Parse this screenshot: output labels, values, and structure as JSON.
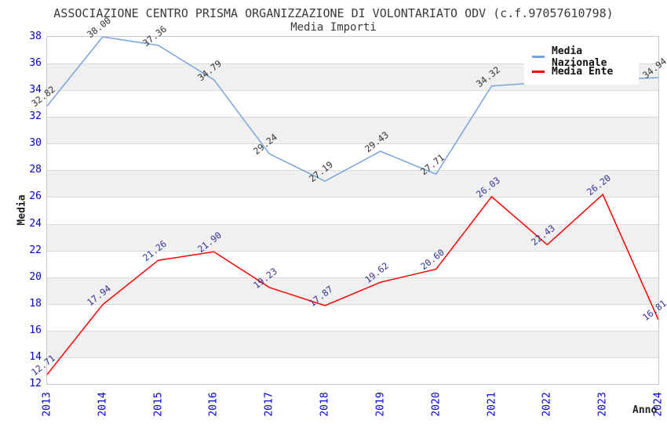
{
  "header": {
    "title": "ASSOCIAZIONE CENTRO PRISMA ORGANIZZAZIONE DI VOLONTARIATO ODV (c.f.97057610798)",
    "subtitle": "Media Importi"
  },
  "chart_data": {
    "type": "line",
    "x": [
      "2013",
      "2014",
      "2015",
      "2016",
      "2017",
      "2018",
      "2019",
      "2020",
      "2021",
      "2022",
      "2023",
      "2024"
    ],
    "xlabel": "Anno",
    "ylabel": "Media",
    "ylim": [
      12,
      38
    ],
    "ytick_step": 2,
    "grid": "horizontal-bands",
    "legend_position": "top-right",
    "tick_color": "#0000cc",
    "band_color": "#f0f0f0",
    "gridline_color": "#dadada",
    "series": [
      {
        "name": "Media Nazionale",
        "color": "#79a4db",
        "label_color": "#333333",
        "values": [
          32.82,
          38.0,
          37.36,
          34.79,
          29.24,
          27.19,
          29.43,
          27.71,
          34.32,
          34.6,
          34.8,
          34.94
        ],
        "labels": [
          "32.82",
          "38.00",
          "37.36",
          "34.79",
          "29.24",
          "27.19",
          "29.43",
          "27.71",
          "34.32",
          null,
          null,
          "34.94"
        ]
      },
      {
        "name": "Media Ente",
        "color": "#ff0000",
        "label_color": "#333399",
        "values": [
          12.71,
          17.94,
          21.26,
          21.9,
          19.23,
          17.87,
          19.62,
          20.6,
          26.03,
          22.43,
          26.2,
          16.81
        ],
        "labels": [
          "12.71",
          "17.94",
          "21.26",
          "21.90",
          "19.23",
          "17.87",
          "19.62",
          "20.60",
          "26.03",
          "22.43",
          "26.20",
          "16.81"
        ]
      }
    ]
  }
}
